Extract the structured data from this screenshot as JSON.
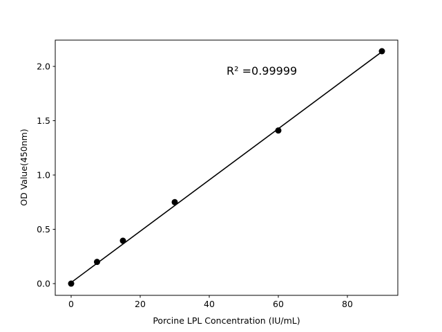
{
  "chart_data": {
    "type": "scatter",
    "title": "",
    "xlabel": "Porcine LPL Concentration (IU/mL)",
    "ylabel": "OD Value(450nm)",
    "xlim": [
      -4.6,
      94.6
    ],
    "ylim": [
      -0.108,
      2.242
    ],
    "xticks": [
      0,
      20,
      40,
      60,
      80
    ],
    "xtick_labels": [
      "0",
      "20",
      "40",
      "60",
      "80"
    ],
    "yticks": [
      0.0,
      0.5,
      1.0,
      1.5,
      2.0
    ],
    "ytick_labels": [
      "0.0",
      "0.5",
      "1.0",
      "1.5",
      "2.0"
    ],
    "grid": false,
    "points": {
      "x": [
        0,
        7.5,
        15,
        30,
        60,
        90
      ],
      "y": [
        0.0,
        0.2,
        0.395,
        0.75,
        1.41,
        2.14
      ]
    },
    "fit_line": {
      "x": [
        0,
        90
      ],
      "y": [
        0.01,
        2.135
      ]
    },
    "annotation": "R² =0.99999",
    "colors": {
      "points": "#000000",
      "line": "#000000"
    }
  }
}
